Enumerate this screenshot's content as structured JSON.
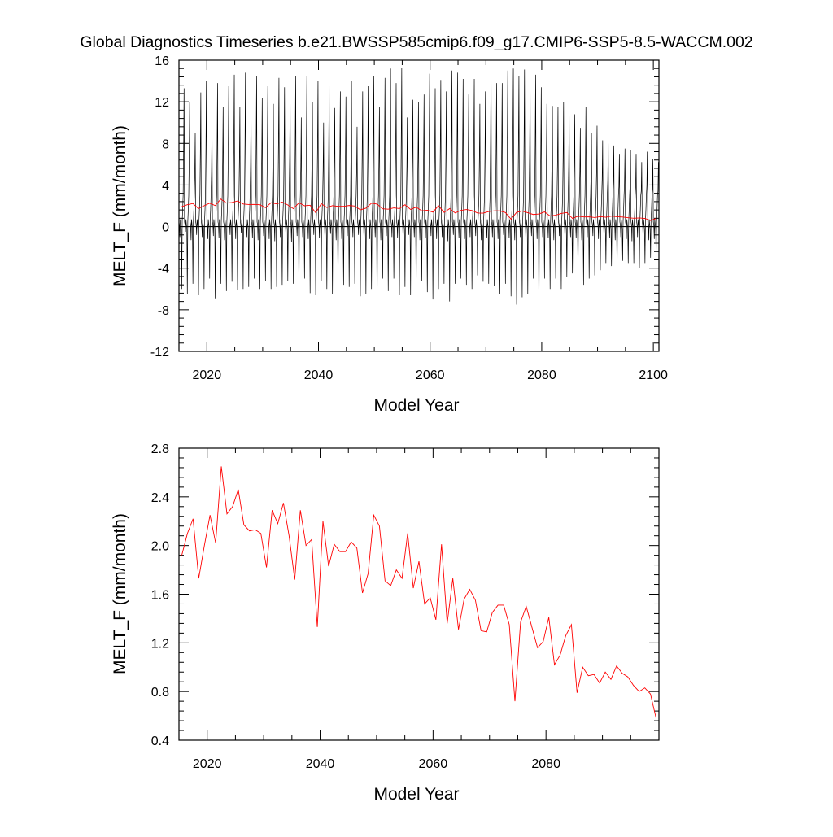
{
  "title": "Global Diagnostics Timeseries b.e21.BWSSP585cmip6.f09_g17.CMIP6-SSP5-8.5-WACCM.002",
  "colors": {
    "monthly": "#000000",
    "annual": "#ff0000",
    "zero_line": "#000000"
  },
  "chart_data": [
    {
      "type": "line",
      "xlabel": "Model Year",
      "ylabel": "MELT_F (mm/month)",
      "xlim": [
        2015,
        2101
      ],
      "ylim": [
        -12,
        16
      ],
      "xticks": [
        2020,
        2040,
        2060,
        2080,
        2100
      ],
      "yticks": [
        -12,
        -8,
        -4,
        0,
        4,
        8,
        12,
        16
      ],
      "ytick_labels": [
        "-12",
        "-8",
        "-4",
        "0",
        "4",
        "8",
        "12",
        "16"
      ],
      "reference_line": 0,
      "series": [
        {
          "kind": "monthly",
          "color": "#000000",
          "x_start": 2015,
          "peaks": [
            13.3,
            12,
            9,
            12.9,
            14,
            9.5,
            13.8,
            11.5,
            13.5,
            14.6,
            11.5,
            14.8,
            11,
            14.5,
            12.4,
            13.5,
            11.8,
            14.3,
            13.4,
            12.2,
            14.5,
            10.5,
            14.5,
            12,
            14,
            10,
            13.5,
            11.4,
            13,
            12.5,
            14,
            9.6,
            13,
            13.5,
            14.5,
            11.5,
            14.3,
            15.2,
            13.8,
            15.3,
            10.5,
            12.2,
            12,
            12.7,
            14.7,
            13.3,
            14.1,
            13,
            15,
            14.8,
            14.2,
            12.7,
            14.2,
            11.8,
            13,
            15.1,
            13.8,
            13.8,
            15,
            15.2,
            14.5,
            15.1,
            13.4,
            14.6,
            13.4,
            11.8,
            11.6,
            11.5,
            12,
            10.7,
            10.8,
            9.5,
            11.5,
            9,
            9.7,
            8.3,
            8,
            7.8,
            7,
            7.5,
            7.4,
            7,
            6.2,
            7.2,
            6.5,
            6.2
          ],
          "troughs": [
            -6,
            -6.5,
            -5.5,
            -6.6,
            -6,
            -5,
            -6.9,
            -5.5,
            -6.2,
            -5.3,
            -6.1,
            -6,
            -5.8,
            -5,
            -6,
            -5.2,
            -6,
            -5.8,
            -5.6,
            -5.2,
            -5.5,
            -6,
            -5,
            -6.4,
            -6.6,
            -5.2,
            -6,
            -6.5,
            -5,
            -5.6,
            -5.8,
            -5.5,
            -6.7,
            -6.5,
            -6,
            -7.3,
            -5,
            -6.2,
            -5,
            -6.6,
            -5.8,
            -6.6,
            -6,
            -5.2,
            -6.3,
            -7,
            -6,
            -5.5,
            -7.2,
            -5.5,
            -5,
            -5.6,
            -6,
            -4.7,
            -5.3,
            -5.5,
            -5.7,
            -6.5,
            -5.5,
            -6.7,
            -7.5,
            -6.8,
            -6.5,
            -5,
            -8.3,
            -5,
            -6,
            -5,
            -6,
            -4.8,
            -4.5,
            -4,
            -5.6,
            -5,
            -4.7,
            -4.2,
            -3.5,
            -3.8,
            -3.9,
            -3.3,
            -3.5,
            -3.5,
            -4,
            -3.5,
            -3,
            -2.8
          ],
          "mid_dips": [
            -1,
            -0.5,
            -1.3,
            -0.8,
            -1,
            -1.2,
            -0.9,
            -1.1,
            -1.3,
            -0.8,
            -1.2,
            -0.6,
            -1,
            -1.1,
            -1.3,
            -0.9,
            -1.2,
            -1.4,
            -1,
            -0.8,
            -1.5,
            -0.9,
            -1,
            -1.2,
            -0.8,
            -1.1,
            -1.3,
            -0.7,
            -1.3,
            -1.2,
            -0.9,
            -1,
            -0.8,
            -1.4,
            -1.2,
            -1,
            -1.3,
            -0.9,
            -1,
            -1.1,
            -1.2,
            -0.8,
            -1,
            -1.3,
            -1.1,
            -0.9,
            -1.2,
            -1,
            -1.4,
            -0.8,
            -1.1,
            -1.2,
            -1,
            -0.9,
            -1.3,
            -1.1,
            -1,
            -1.2,
            -0.8,
            -1.1,
            -1.3,
            -1,
            -1.4,
            -0.9,
            -1.2,
            -1,
            -1.1,
            -1.3,
            -0.9,
            -1.2,
            -1,
            -1.1,
            -1.3,
            -1,
            -0.9,
            -1.2,
            -1,
            -1.1,
            -1.3,
            -1,
            -1.2,
            -1.4,
            -1,
            -1.1,
            -1.3,
            -1.2
          ]
        },
        {
          "kind": "annual",
          "color": "#ff0000",
          "x": [
            2015,
            2016,
            2017,
            2018,
            2019,
            2020,
            2021,
            2022,
            2023,
            2024,
            2025,
            2026,
            2027,
            2028,
            2029,
            2030,
            2031,
            2032,
            2033,
            2034,
            2035,
            2036,
            2037,
            2038,
            2039,
            2040,
            2041,
            2042,
            2043,
            2044,
            2045,
            2046,
            2047,
            2048,
            2049,
            2050,
            2051,
            2052,
            2053,
            2054,
            2055,
            2056,
            2057,
            2058,
            2059,
            2060,
            2061,
            2062,
            2063,
            2064,
            2065,
            2066,
            2067,
            2068,
            2069,
            2070,
            2071,
            2072,
            2073,
            2074,
            2075,
            2076,
            2077,
            2078,
            2079,
            2080,
            2081,
            2082,
            2083,
            2084,
            2085,
            2086,
            2087,
            2088,
            2089,
            2090,
            2091,
            2092,
            2093,
            2094,
            2095,
            2096,
            2097,
            2098,
            2099,
            2100
          ],
          "values": [
            1.92,
            2.1,
            2.22,
            1.73,
            2.0,
            2.25,
            2.02,
            2.65,
            2.26,
            2.32,
            2.46,
            2.17,
            2.12,
            2.13,
            2.1,
            1.82,
            2.29,
            2.18,
            2.35,
            2.08,
            1.72,
            2.29,
            2.0,
            2.05,
            1.33,
            2.2,
            1.83,
            2.01,
            1.95,
            1.95,
            2.03,
            1.98,
            1.61,
            1.77,
            2.25,
            2.16,
            1.71,
            1.67,
            1.8,
            1.73,
            2.1,
            1.65,
            1.87,
            1.52,
            1.57,
            1.39,
            2.01,
            1.36,
            1.73,
            1.31,
            1.56,
            1.64,
            1.55,
            1.3,
            1.29,
            1.45,
            1.51,
            1.51,
            1.35,
            0.72,
            1.37,
            1.5,
            1.33,
            1.16,
            1.21,
            1.41,
            1.02,
            1.1,
            1.26,
            1.35,
            0.79,
            1.0,
            0.93,
            0.94,
            0.87,
            0.96,
            0.9,
            1.01,
            0.95,
            0.92,
            0.85,
            0.8,
            0.83,
            0.78,
            0.58,
            0.78
          ]
        }
      ]
    },
    {
      "type": "line",
      "xlabel": "Model Year",
      "ylabel": "MELT_F (mm/month)",
      "xlim": [
        2015,
        2100
      ],
      "ylim": [
        0.4,
        2.8
      ],
      "xticks": [
        2020,
        2040,
        2060,
        2080
      ],
      "yticks": [
        0.4,
        0.8,
        1.2,
        1.6,
        2.0,
        2.4,
        2.8
      ],
      "ytick_labels": [
        "0.4",
        "0.8",
        "1.2",
        "1.6",
        "2.0",
        "2.4",
        "2.8"
      ],
      "series": [
        {
          "kind": "annual",
          "color": "#ff0000",
          "x": [
            2015,
            2016,
            2017,
            2018,
            2019,
            2020,
            2021,
            2022,
            2023,
            2024,
            2025,
            2026,
            2027,
            2028,
            2029,
            2030,
            2031,
            2032,
            2033,
            2034,
            2035,
            2036,
            2037,
            2038,
            2039,
            2040,
            2041,
            2042,
            2043,
            2044,
            2045,
            2046,
            2047,
            2048,
            2049,
            2050,
            2051,
            2052,
            2053,
            2054,
            2055,
            2056,
            2057,
            2058,
            2059,
            2060,
            2061,
            2062,
            2063,
            2064,
            2065,
            2066,
            2067,
            2068,
            2069,
            2070,
            2071,
            2072,
            2073,
            2074,
            2075,
            2076,
            2077,
            2078,
            2079,
            2080,
            2081,
            2082,
            2083,
            2084,
            2085,
            2086,
            2087,
            2088,
            2089,
            2090,
            2091,
            2092,
            2093,
            2094,
            2095,
            2096,
            2097,
            2098,
            2099
          ],
          "values": [
            1.92,
            2.1,
            2.22,
            1.73,
            2.0,
            2.25,
            2.02,
            2.65,
            2.26,
            2.32,
            2.46,
            2.17,
            2.12,
            2.13,
            2.1,
            1.82,
            2.29,
            2.18,
            2.35,
            2.08,
            1.72,
            2.29,
            2.0,
            2.05,
            1.33,
            2.2,
            1.83,
            2.01,
            1.95,
            1.95,
            2.03,
            1.98,
            1.61,
            1.77,
            2.25,
            2.16,
            1.71,
            1.67,
            1.8,
            1.73,
            2.1,
            1.65,
            1.87,
            1.52,
            1.57,
            1.39,
            2.01,
            1.36,
            1.73,
            1.31,
            1.56,
            1.64,
            1.55,
            1.3,
            1.29,
            1.45,
            1.51,
            1.51,
            1.35,
            0.72,
            1.37,
            1.5,
            1.33,
            1.16,
            1.21,
            1.41,
            1.02,
            1.1,
            1.26,
            1.35,
            0.79,
            1.0,
            0.93,
            0.94,
            0.87,
            0.96,
            0.9,
            1.01,
            0.95,
            0.92,
            0.85,
            0.8,
            0.83,
            0.78,
            0.58
          ]
        }
      ]
    }
  ]
}
